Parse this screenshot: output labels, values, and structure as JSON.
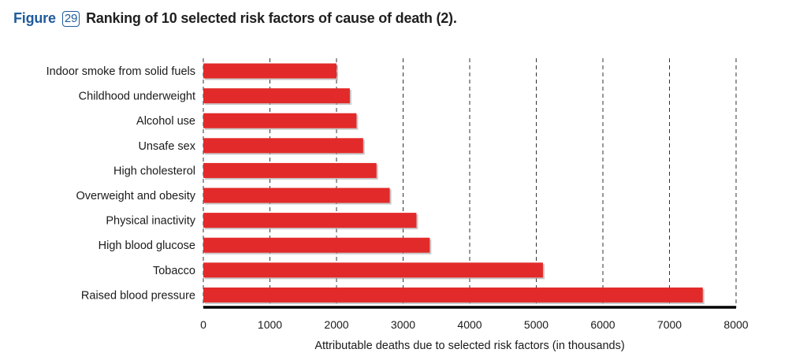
{
  "figure": {
    "label": "Figure",
    "number": "29",
    "title": "Ranking of 10 selected risk factors of cause of death (2)."
  },
  "chart_data": {
    "type": "bar",
    "orientation": "horizontal",
    "categories": [
      "Indoor smoke from solid fuels",
      "Childhood underweight",
      "Alcohol use",
      "Unsafe sex",
      "High cholesterol",
      "Overweight and obesity",
      "Physical inactivity",
      "High blood glucose",
      "Tobacco",
      "Raised blood pressure"
    ],
    "values": [
      2000,
      2200,
      2300,
      2400,
      2600,
      2800,
      3200,
      3400,
      5100,
      7500
    ],
    "title": "",
    "xlabel": "Attributable deaths due to selected risk factors (in thousands)",
    "ylabel": "",
    "xlim": [
      0,
      8000
    ],
    "xticks": [
      "0",
      "1000",
      "2000",
      "3000",
      "4000",
      "5000",
      "6000",
      "7000",
      "8000"
    ],
    "grid": "vertical dashed",
    "bar_color": "#e32a2a",
    "legend": "none"
  }
}
